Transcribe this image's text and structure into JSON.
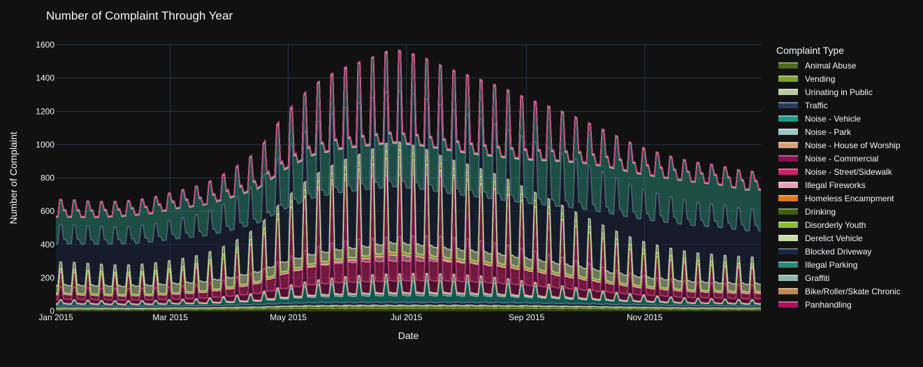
{
  "chart_data": {
    "type": "area",
    "title": "Number of Complaint Through Year",
    "xlabel": "Date",
    "ylabel": "Number of Complaint",
    "x_ticks": [
      "Jan 2015",
      "Mar 2015",
      "May 2015",
      "Jul 2015",
      "Sep 2015",
      "Nov 2015"
    ],
    "x_range": [
      "2015-01-01",
      "2015-12-31"
    ],
    "y_ticks": [
      0,
      200,
      400,
      600,
      800,
      1000,
      1200,
      1400,
      1600
    ],
    "ylim": [
      0,
      1600
    ],
    "stacked": true,
    "grid": true,
    "legend_title": "Complaint Type",
    "legend_position": "right",
    "dates": [
      "2015-01-07",
      "2015-01-21",
      "2015-02-04",
      "2015-02-18",
      "2015-03-04",
      "2015-03-18",
      "2015-04-01",
      "2015-04-15",
      "2015-04-29",
      "2015-05-13",
      "2015-05-27",
      "2015-06-10",
      "2015-06-24",
      "2015-07-08",
      "2015-07-22",
      "2015-08-05",
      "2015-08-19",
      "2015-09-02",
      "2015-09-16",
      "2015-09-30",
      "2015-10-14",
      "2015-10-28",
      "2015-11-11",
      "2015-11-25",
      "2015-12-09",
      "2015-12-23"
    ],
    "series": [
      {
        "name": "Animal Abuse",
        "color": "#4d6b1a",
        "values": [
          10,
          10,
          10,
          10,
          11,
          11,
          12,
          13,
          15,
          16,
          16,
          16,
          16,
          16,
          16,
          16,
          16,
          16,
          15,
          15,
          14,
          13,
          12,
          11,
          11,
          10
        ]
      },
      {
        "name": "Vending",
        "color": "#7fa32a",
        "values": [
          8,
          8,
          7,
          7,
          8,
          8,
          9,
          10,
          12,
          13,
          14,
          14,
          14,
          14,
          14,
          14,
          13,
          13,
          12,
          11,
          10,
          9,
          9,
          8,
          8,
          8
        ]
      },
      {
        "name": "Urinating in Public",
        "color": "#b8c9a0",
        "values": [
          1,
          1,
          1,
          1,
          1,
          1,
          2,
          2,
          3,
          4,
          4,
          5,
          5,
          5,
          5,
          5,
          4,
          4,
          3,
          3,
          2,
          2,
          1,
          1,
          1,
          1
        ]
      },
      {
        "name": "Traffic",
        "color": "#2a3a5c",
        "values": [
          12,
          12,
          12,
          12,
          12,
          13,
          14,
          15,
          17,
          18,
          18,
          18,
          18,
          18,
          18,
          18,
          18,
          17,
          17,
          16,
          15,
          15,
          14,
          13,
          13,
          12
        ]
      },
      {
        "name": "Noise - Vehicle",
        "color": "#1c9a8a",
        "values": [
          18,
          16,
          15,
          16,
          18,
          20,
          24,
          30,
          42,
          52,
          58,
          62,
          64,
          65,
          64,
          62,
          58,
          52,
          46,
          40,
          34,
          28,
          24,
          22,
          20,
          18
        ]
      },
      {
        "name": "Noise - Park",
        "color": "#9ec4c0",
        "values": [
          1,
          1,
          1,
          1,
          1,
          2,
          3,
          5,
          9,
          14,
          18,
          20,
          21,
          22,
          21,
          19,
          16,
          12,
          9,
          6,
          4,
          3,
          2,
          1,
          1,
          1
        ]
      },
      {
        "name": "Noise - House of Worship",
        "color": "#d8a070",
        "values": [
          3,
          3,
          3,
          3,
          3,
          3,
          4,
          4,
          5,
          5,
          5,
          5,
          6,
          6,
          6,
          5,
          5,
          5,
          5,
          5,
          4,
          4,
          4,
          3,
          3,
          3
        ]
      },
      {
        "name": "Noise - Commercial",
        "color": "#8a1050",
        "values": [
          40,
          38,
          37,
          38,
          40,
          45,
          52,
          65,
          85,
          100,
          110,
          112,
          114,
          115,
          114,
          110,
          105,
          98,
          90,
          80,
          70,
          60,
          55,
          50,
          48,
          45
        ]
      },
      {
        "name": "Noise - Street/Sidewalk",
        "color": "#d0206a",
        "values": [
          45,
          42,
          40,
          42,
          48,
          55,
          70,
          95,
          140,
          170,
          185,
          190,
          190,
          188,
          185,
          175,
          160,
          140,
          120,
          100,
          85,
          70,
          62,
          56,
          52,
          50
        ]
      },
      {
        "name": "Illegal Fireworks",
        "color": "#e8a0b8",
        "values": [
          0,
          0,
          0,
          0,
          0,
          0,
          0,
          1,
          2,
          6,
          14,
          30,
          60,
          40,
          10,
          4,
          2,
          1,
          1,
          1,
          0,
          0,
          0,
          0,
          2,
          6
        ]
      },
      {
        "name": "Homeless Encampment",
        "color": "#e07818",
        "values": [
          3,
          3,
          3,
          3,
          3,
          3,
          4,
          4,
          5,
          5,
          5,
          5,
          5,
          5,
          5,
          5,
          5,
          5,
          5,
          5,
          4,
          4,
          4,
          4,
          3,
          3
        ]
      },
      {
        "name": "Drinking",
        "color": "#3e5e10",
        "values": [
          4,
          4,
          4,
          4,
          4,
          4,
          5,
          6,
          7,
          8,
          9,
          9,
          9,
          9,
          9,
          9,
          9,
          8,
          8,
          7,
          6,
          6,
          5,
          5,
          5,
          4
        ]
      },
      {
        "name": "Disorderly Youth",
        "color": "#8abc2a",
        "values": [
          4,
          4,
          4,
          4,
          4,
          5,
          6,
          7,
          8,
          9,
          10,
          10,
          10,
          10,
          10,
          10,
          10,
          9,
          9,
          8,
          7,
          6,
          6,
          5,
          5,
          4
        ]
      },
      {
        "name": "Derelict Vehicle",
        "color": "#c8d8a8",
        "values": [
          48,
          50,
          50,
          52,
          55,
          55,
          55,
          55,
          55,
          55,
          55,
          55,
          55,
          55,
          55,
          55,
          55,
          55,
          55,
          55,
          55,
          52,
          50,
          50,
          48,
          46
        ]
      },
      {
        "name": "Blocked Driveway",
        "color": "#1a2640",
        "values": [
          250,
          250,
          255,
          260,
          270,
          275,
          285,
          295,
          320,
          340,
          345,
          345,
          340,
          338,
          335,
          330,
          330,
          335,
          345,
          355,
          355,
          350,
          345,
          340,
          335,
          320
        ]
      },
      {
        "name": "Illegal Parking",
        "color": "#2a8a7a",
        "values": [
          160,
          160,
          165,
          170,
          180,
          185,
          195,
          205,
          235,
          255,
          260,
          262,
          262,
          260,
          258,
          255,
          255,
          260,
          268,
          275,
          275,
          270,
          265,
          260,
          255,
          245
        ]
      },
      {
        "name": "Graffiti",
        "color": "#90b4b0",
        "values": [
          3,
          3,
          3,
          3,
          3,
          3,
          4,
          4,
          4,
          4,
          4,
          4,
          4,
          4,
          4,
          4,
          4,
          4,
          4,
          4,
          4,
          4,
          3,
          3,
          3,
          3
        ]
      },
      {
        "name": "Bike/Roller/Skate Chronic",
        "color": "#c08850",
        "values": [
          1,
          1,
          1,
          1,
          1,
          1,
          2,
          2,
          3,
          3,
          3,
          3,
          3,
          3,
          3,
          3,
          3,
          3,
          3,
          2,
          2,
          2,
          1,
          1,
          1,
          1
        ]
      },
      {
        "name": "Panhandling",
        "color": "#b0105a",
        "values": [
          3,
          3,
          3,
          3,
          3,
          3,
          3,
          3,
          3,
          3,
          3,
          3,
          3,
          3,
          3,
          3,
          3,
          3,
          3,
          3,
          3,
          3,
          3,
          3,
          3,
          3
        ]
      }
    ]
  }
}
